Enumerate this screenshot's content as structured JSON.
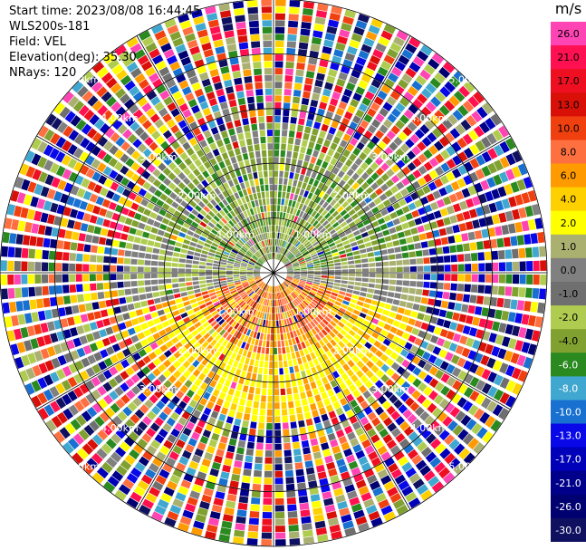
{
  "header": {
    "start_time": "Start time: 2023/08/08 16:44:45",
    "instrument": "WLS200s-181",
    "field": "Field: VEL",
    "elevation": "Elevation(deg): 35.30",
    "nrays": "NRays: 120"
  },
  "range_rings": {
    "labels": [
      "1.00km",
      "2.00km",
      "3.00km",
      "4.00km",
      "5.00km"
    ]
  },
  "colorbar": {
    "unit": "m/s",
    "ticks": [
      "26.0",
      "21.0",
      "17.0",
      "13.0",
      "10.0",
      "8.0",
      "6.0",
      "4.0",
      "2.0",
      "1.0",
      "0.0",
      "-1.0",
      "-2.0",
      "-4.0",
      "-6.0",
      "-8.0",
      "-10.0",
      "-13.0",
      "-17.0",
      "-21.0",
      "-26.0",
      "-30.0"
    ],
    "colors": [
      "#ff44b4",
      "#ff1050",
      "#ee1020",
      "#d81008",
      "#f04010",
      "#ff7040",
      "#ff9a00",
      "#ffd000",
      "#ffff00",
      "#aab070",
      "#808080",
      "#6f6f6f",
      "#b0cc50",
      "#80a030",
      "#2a8a20",
      "#40a8d0",
      "#1870d0",
      "#0808e8",
      "#0000b8",
      "#00008a",
      "#000070",
      "#101060"
    ]
  },
  "chart_data": {
    "type": "ppi",
    "field": "VEL",
    "units": "m/s",
    "elevation_deg": 35.3,
    "n_rays": 120,
    "max_range_km": 5.0,
    "range_ring_step_km": 1.0
  }
}
